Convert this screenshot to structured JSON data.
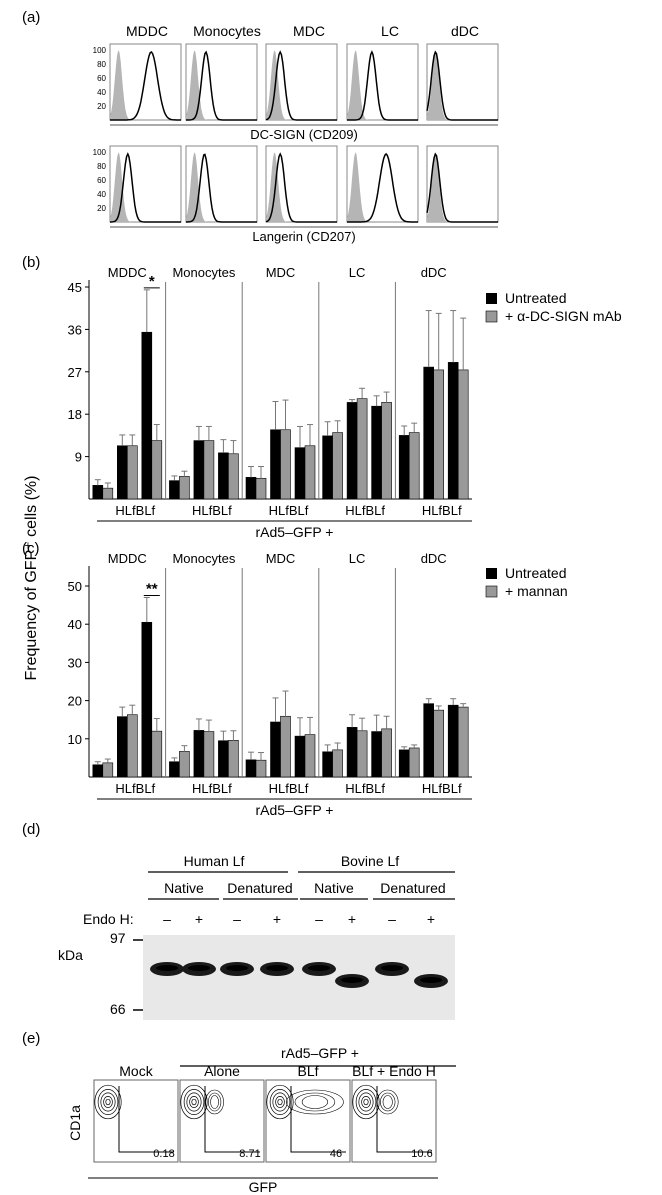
{
  "panel_a": {
    "label": "(a)",
    "cells": [
      "MDDC",
      "Monocytes",
      "MDC",
      "LC",
      "dDC"
    ],
    "yticks": [
      "100",
      "80",
      "60",
      "40",
      "20"
    ],
    "row1_label": "DC-SIGN (CD209)",
    "row2_label": "Langerin (CD207)",
    "row1_peak_positions": [
      0.58,
      0.28,
      0.2,
      0.35,
      0.12
    ],
    "row2_peak_positions": [
      0.25,
      0.26,
      0.2,
      0.55,
      0.12
    ]
  },
  "shared": {
    "ylabel": "Frequency of GFP⁺ cells (%)"
  },
  "chart_data": [
    {
      "type": "bar",
      "panel": "(b)",
      "ylim": [
        0,
        45
      ],
      "yticks": [
        9,
        18,
        27,
        36,
        45
      ],
      "cell_groups": [
        "MDDC",
        "Monocytes",
        "MDC",
        "LC",
        "dDC"
      ],
      "conditions": [
        "",
        "HLf",
        "BLf"
      ],
      "xtick_text": "HLfBLf",
      "xlabel": "rAd5–GFP +",
      "significance": {
        "group": 0,
        "condition": 2,
        "text": "*"
      },
      "series": [
        {
          "name": "Untreated",
          "color": "#000000",
          "values": [
            2.9,
            11.3,
            35.4,
            3.9,
            12.4,
            9.8,
            4.6,
            14.7,
            10.9,
            13.4,
            20.5,
            19.7,
            13.5,
            28,
            29
          ]
        },
        {
          "name": "+ α-DC-SIGN mAb",
          "color": "#999999",
          "values": [
            2.3,
            11.3,
            12.4,
            4.8,
            12.4,
            9.6,
            4.4,
            14.7,
            11.3,
            14.1,
            21.3,
            20.5,
            14.1,
            27.4,
            27.4
          ]
        }
      ],
      "errors": [
        [
          1.2,
          2.3,
          9,
          1,
          3,
          2.8,
          2.3,
          6,
          4.5,
          3,
          0.6,
          2.2,
          2,
          12,
          11
        ],
        [
          1.1,
          2.3,
          3.4,
          1.1,
          3,
          2.8,
          2.5,
          6.3,
          4.5,
          2.5,
          2.2,
          2.2,
          2,
          12,
          11
        ]
      ]
    },
    {
      "type": "bar",
      "panel": "(c)",
      "ylim": [
        0,
        50
      ],
      "yticks": [
        10,
        20,
        30,
        40,
        50
      ],
      "cell_groups": [
        "MDDC",
        "Monocytes",
        "MDC",
        "LC",
        "dDC"
      ],
      "conditions": [
        "",
        "HLf",
        "BLf"
      ],
      "xtick_text": "HLfBLf",
      "xlabel": "rAd5–GFP +",
      "significance": {
        "group": 0,
        "condition": 2,
        "text": "**"
      },
      "series": [
        {
          "name": "Untreated",
          "color": "#000000",
          "values": [
            3.2,
            15.8,
            40.5,
            4,
            12.2,
            9.5,
            4.5,
            14.4,
            10.7,
            6.6,
            13,
            11.9,
            7.1,
            19.2,
            18.8
          ]
        },
        {
          "name": "+ mannan",
          "color": "#999999",
          "values": [
            3.7,
            16.3,
            12,
            6.7,
            11.9,
            9.6,
            4.4,
            15.9,
            11.1,
            7.1,
            12.1,
            12.6,
            7.6,
            17.5,
            18.3
          ]
        }
      ],
      "errors": [
        [
          0.8,
          2.5,
          6.5,
          1,
          3,
          2.5,
          2,
          6.3,
          4.8,
          1.8,
          3.3,
          4.3,
          0.8,
          1.3,
          1.7
        ],
        [
          1,
          2.5,
          3.3,
          1.5,
          3,
          2.5,
          2,
          6.6,
          4.5,
          1.8,
          3.3,
          3.3,
          0.8,
          1.1,
          0.9
        ]
      ]
    }
  ],
  "panel_d": {
    "label": "(d)",
    "groups": [
      "Human Lf",
      "Bovine Lf"
    ],
    "subgroups": [
      "Native",
      "Denatured",
      "Native",
      "Denatured"
    ],
    "endo_label": "Endo H:",
    "lanes": [
      "–",
      "+",
      "–",
      "+",
      "–",
      "+",
      "–",
      "+"
    ],
    "kda_label": "kDa",
    "markers": [
      "97",
      "66"
    ],
    "band_levels": [
      "high",
      "high",
      "high",
      "high",
      "high",
      "low",
      "high",
      "low"
    ]
  },
  "panel_e": {
    "label": "(e)",
    "header": "rAd5–GFP +",
    "columns": [
      "Mock",
      "Alone",
      "BLf",
      "BLf + Endo H"
    ],
    "values": [
      "0.18",
      "8.71",
      "46",
      "10.6"
    ],
    "gfp_spread": [
      0.05,
      0.3,
      0.95,
      0.35
    ],
    "ylabel": "CD1a",
    "xlabel": "GFP"
  }
}
